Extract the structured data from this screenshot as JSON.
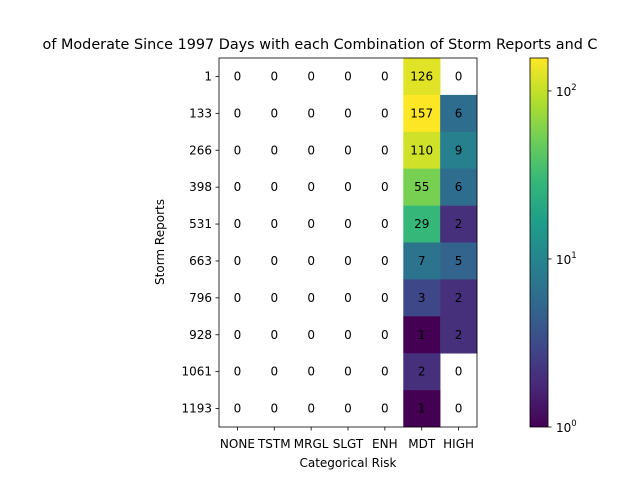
{
  "chart_data": {
    "type": "heatmap",
    "title": "of Moderate Since 1997 Days with each Combination of Storm Reports and C",
    "xlabel": "Categorical Risk",
    "ylabel": "Storm Reports",
    "x_categories": [
      "NONE",
      "TSTM",
      "MRGL",
      "SLGT",
      "ENH",
      "MDT",
      "HIGH"
    ],
    "y_categories": [
      "1",
      "133",
      "266",
      "398",
      "531",
      "663",
      "796",
      "928",
      "1061",
      "1193"
    ],
    "values": [
      [
        0,
        0,
        0,
        0,
        0,
        126,
        0
      ],
      [
        0,
        0,
        0,
        0,
        0,
        157,
        6
      ],
      [
        0,
        0,
        0,
        0,
        0,
        110,
        9
      ],
      [
        0,
        0,
        0,
        0,
        0,
        55,
        6
      ],
      [
        0,
        0,
        0,
        0,
        0,
        29,
        2
      ],
      [
        0,
        0,
        0,
        0,
        0,
        7,
        5
      ],
      [
        0,
        0,
        0,
        0,
        0,
        3,
        2
      ],
      [
        0,
        0,
        0,
        0,
        0,
        1,
        2
      ],
      [
        0,
        0,
        0,
        0,
        0,
        2,
        0
      ],
      [
        0,
        0,
        0,
        0,
        0,
        1,
        0
      ]
    ],
    "colorbar": {
      "scale": "log",
      "colormap": "viridis",
      "range": [
        1,
        157
      ],
      "ticks": [
        {
          "base": "10",
          "exp": "0",
          "value": 1
        },
        {
          "base": "10",
          "exp": "1",
          "value": 10
        },
        {
          "base": "10",
          "exp": "2",
          "value": 100
        }
      ]
    },
    "zero_color": "#ffffff",
    "grid": false
  }
}
